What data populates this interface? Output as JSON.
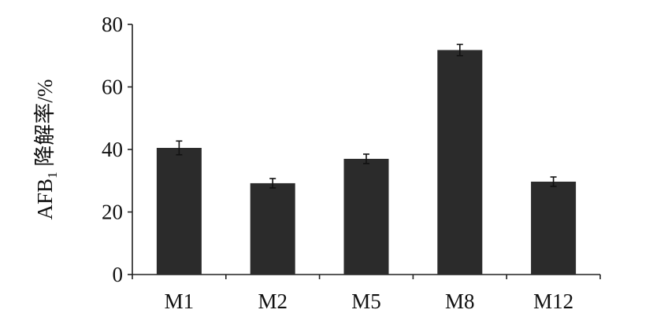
{
  "chart_data": {
    "type": "bar",
    "categories": [
      "M1",
      "M2",
      "M5",
      "M8",
      "M12"
    ],
    "values": [
      40.5,
      29.2,
      37.0,
      71.8,
      29.7
    ],
    "error": [
      2.2,
      1.5,
      1.5,
      1.8,
      1.5
    ],
    "ylabel_main": "AFB",
    "ylabel_sub": "1",
    "ylabel_rest": " 降解率/%",
    "ylim": [
      0,
      80
    ],
    "yticks": [
      0,
      20,
      40,
      60,
      80
    ],
    "grid": false,
    "bar_color": "#2b2b2b"
  }
}
